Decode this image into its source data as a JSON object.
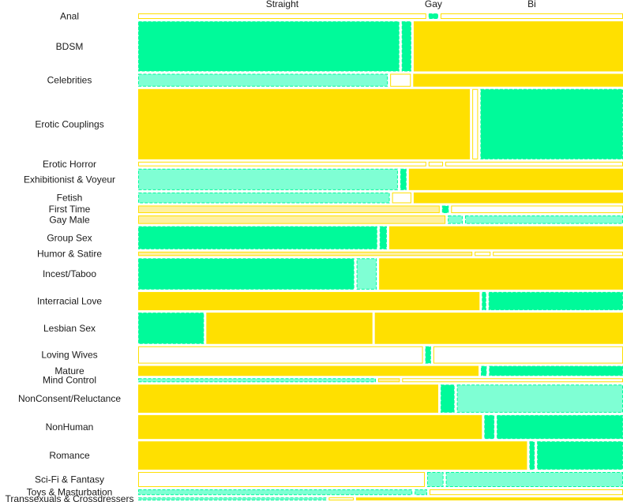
{
  "chart_data": {
    "type": "mosaic",
    "title": "",
    "xlabel": "",
    "ylabel": "",
    "columns": [
      "Straight",
      "Gay",
      "Bi"
    ],
    "colors": {
      "strong_positive": "#00fa9a",
      "weak_positive": "#7fffd4",
      "neutral": "#ffffff",
      "weak_negative": "#fff0a0",
      "strong_negative": "#ffe000",
      "outline_positive": "#00fa9a",
      "outline_negative": "#ffe000"
    },
    "rows": [
      {
        "category": "Anal",
        "weight": 0.0114,
        "proportions": [
          0.6,
          0.02,
          0.38
        ],
        "residuals": [
          "neutral",
          "strong_positive",
          "neutral"
        ]
      },
      {
        "category": "BDSM",
        "weight": 0.1032,
        "proportions": [
          0.544,
          0.02,
          0.436
        ],
        "residuals": [
          "strong_positive",
          "strong_positive",
          "strong_negative"
        ]
      },
      {
        "category": "Celebrities",
        "weight": 0.0265,
        "proportions": [
          0.52,
          0.043,
          0.437
        ],
        "residuals": [
          "weak_positive",
          "neutral",
          "strong_negative"
        ]
      },
      {
        "category": "Erotic Couplings",
        "weight": 0.1448,
        "proportions": [
          0.691,
          0.012,
          0.297
        ],
        "residuals": [
          "strong_negative",
          "neutral",
          "strong_positive"
        ]
      },
      {
        "category": "Erotic Horror",
        "weight": 0.0095,
        "proportions": [
          0.6,
          0.03,
          0.37
        ],
        "residuals": [
          "neutral",
          "neutral",
          "neutral"
        ]
      },
      {
        "category": "Exhibitionist & Voyeur",
        "weight": 0.0441,
        "proportions": [
          0.541,
          0.013,
          0.446
        ],
        "residuals": [
          "weak_positive",
          "strong_positive",
          "strong_negative"
        ]
      },
      {
        "category": "Fetish",
        "weight": 0.0221,
        "proportions": [
          0.524,
          0.04,
          0.436
        ],
        "residuals": [
          "weak_positive",
          "neutral",
          "strong_negative"
        ]
      },
      {
        "category": "First Time",
        "weight": 0.0155,
        "proportions": [
          0.628,
          0.014,
          0.358
        ],
        "residuals": [
          "weak_negative",
          "strong_positive",
          "neutral"
        ]
      },
      {
        "category": "Gay Male",
        "weight": 0.0174,
        "proportions": [
          0.64,
          0.031,
          0.329
        ],
        "residuals": [
          "weak_negative",
          "weak_positive",
          "weak_positive"
        ]
      },
      {
        "category": "Group Sex",
        "weight": 0.0474,
        "proportions": [
          0.498,
          0.015,
          0.487
        ],
        "residuals": [
          "strong_positive",
          "strong_positive",
          "strong_negative"
        ]
      },
      {
        "category": "Humor & Satire",
        "weight": 0.0089,
        "proportions": [
          0.696,
          0.033,
          0.271
        ],
        "residuals": [
          "weak_negative",
          "neutral",
          "neutral"
        ]
      },
      {
        "category": "Incest/Taboo",
        "weight": 0.0644,
        "proportions": [
          0.45,
          0.042,
          0.508
        ],
        "residuals": [
          "strong_positive",
          "weak_positive",
          "strong_negative"
        ]
      },
      {
        "category": "Interracial Love",
        "weight": 0.0376,
        "proportions": [
          0.711,
          0.009,
          0.28
        ],
        "residuals": [
          "strong_negative",
          "strong_positive",
          "strong_positive"
        ]
      },
      {
        "category": "Lesbian Sex",
        "weight": 0.0645,
        "proportions": [
          0.137,
          0.346,
          0.517
        ],
        "residuals": [
          "strong_positive",
          "strong_negative",
          "strong_negative"
        ]
      },
      {
        "category": "Loving Wives",
        "weight": 0.0355,
        "proportions": [
          0.593,
          0.012,
          0.395
        ],
        "residuals": [
          "neutral",
          "strong_positive",
          "neutral"
        ]
      },
      {
        "category": "Mature",
        "weight": 0.0206,
        "proportions": [
          0.709,
          0.012,
          0.279
        ],
        "residuals": [
          "strong_negative",
          "strong_positive",
          "strong_positive"
        ]
      },
      {
        "category": "Mind Control",
        "weight": 0.0081,
        "proportions": [
          0.495,
          0.045,
          0.46
        ],
        "residuals": [
          "weak_positive",
          "weak_negative",
          "neutral"
        ]
      },
      {
        "category": "NonConsent/Reluctance",
        "weight": 0.058,
        "proportions": [
          0.625,
          0.029,
          0.346
        ],
        "residuals": [
          "strong_negative",
          "strong_positive",
          "weak_positive"
        ]
      },
      {
        "category": "NonHuman",
        "weight": 0.0492,
        "proportions": [
          0.716,
          0.021,
          0.263
        ],
        "residuals": [
          "strong_negative",
          "strong_positive",
          "strong_positive"
        ]
      },
      {
        "category": "Romance",
        "weight": 0.0583,
        "proportions": [
          0.81,
          0.011,
          0.179
        ],
        "residuals": [
          "strong_negative",
          "strong_positive",
          "strong_positive"
        ]
      },
      {
        "category": "Sci-Fi & Fantasy",
        "weight": 0.0308,
        "proportions": [
          0.597,
          0.034,
          0.369
        ],
        "residuals": [
          "neutral",
          "weak_positive",
          "weak_positive"
        ]
      },
      {
        "category": "Toys & Masturbation",
        "weight": 0.0117,
        "proportions": [
          0.571,
          0.026,
          0.403
        ],
        "residuals": [
          "weak_positive",
          "weak_positive",
          "neutral"
        ]
      },
      {
        "category": "Transsexuals & Crossdressers",
        "weight": 0.0062,
        "proportions": [
          0.392,
          0.052,
          0.556
        ],
        "residuals": [
          "weak_positive",
          "neutral",
          "strong_negative"
        ]
      }
    ]
  }
}
